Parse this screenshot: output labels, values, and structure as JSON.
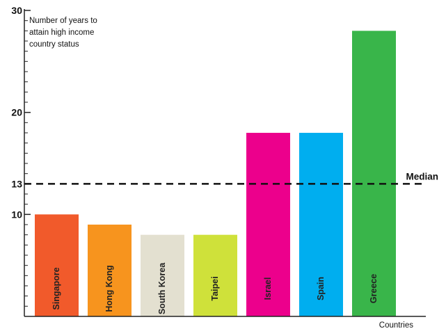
{
  "chart_data": {
    "type": "bar",
    "ylabel": "Number of years to attain high income country status",
    "ylabel_lines": [
      "Number of years to",
      "attain high income",
      "country status"
    ],
    "xlabel": "Countries",
    "ylim": [
      0,
      30
    ],
    "yticks_labeled": [
      10,
      13,
      20,
      30
    ],
    "minor_tick_step": 1,
    "grid": false,
    "categories": [
      "Singapore",
      "Hong Kong",
      "South Korea",
      "Taipei",
      "Israel",
      "Spain",
      "Greece"
    ],
    "values": [
      10,
      9,
      8,
      8,
      18,
      18,
      28
    ],
    "colors": [
      "#f15a2b",
      "#f7941e",
      "#e3e0d0",
      "#cfe13a",
      "#ec008c",
      "#00aeef",
      "#39b54a"
    ],
    "median": {
      "value": 13,
      "label": "Median"
    }
  }
}
